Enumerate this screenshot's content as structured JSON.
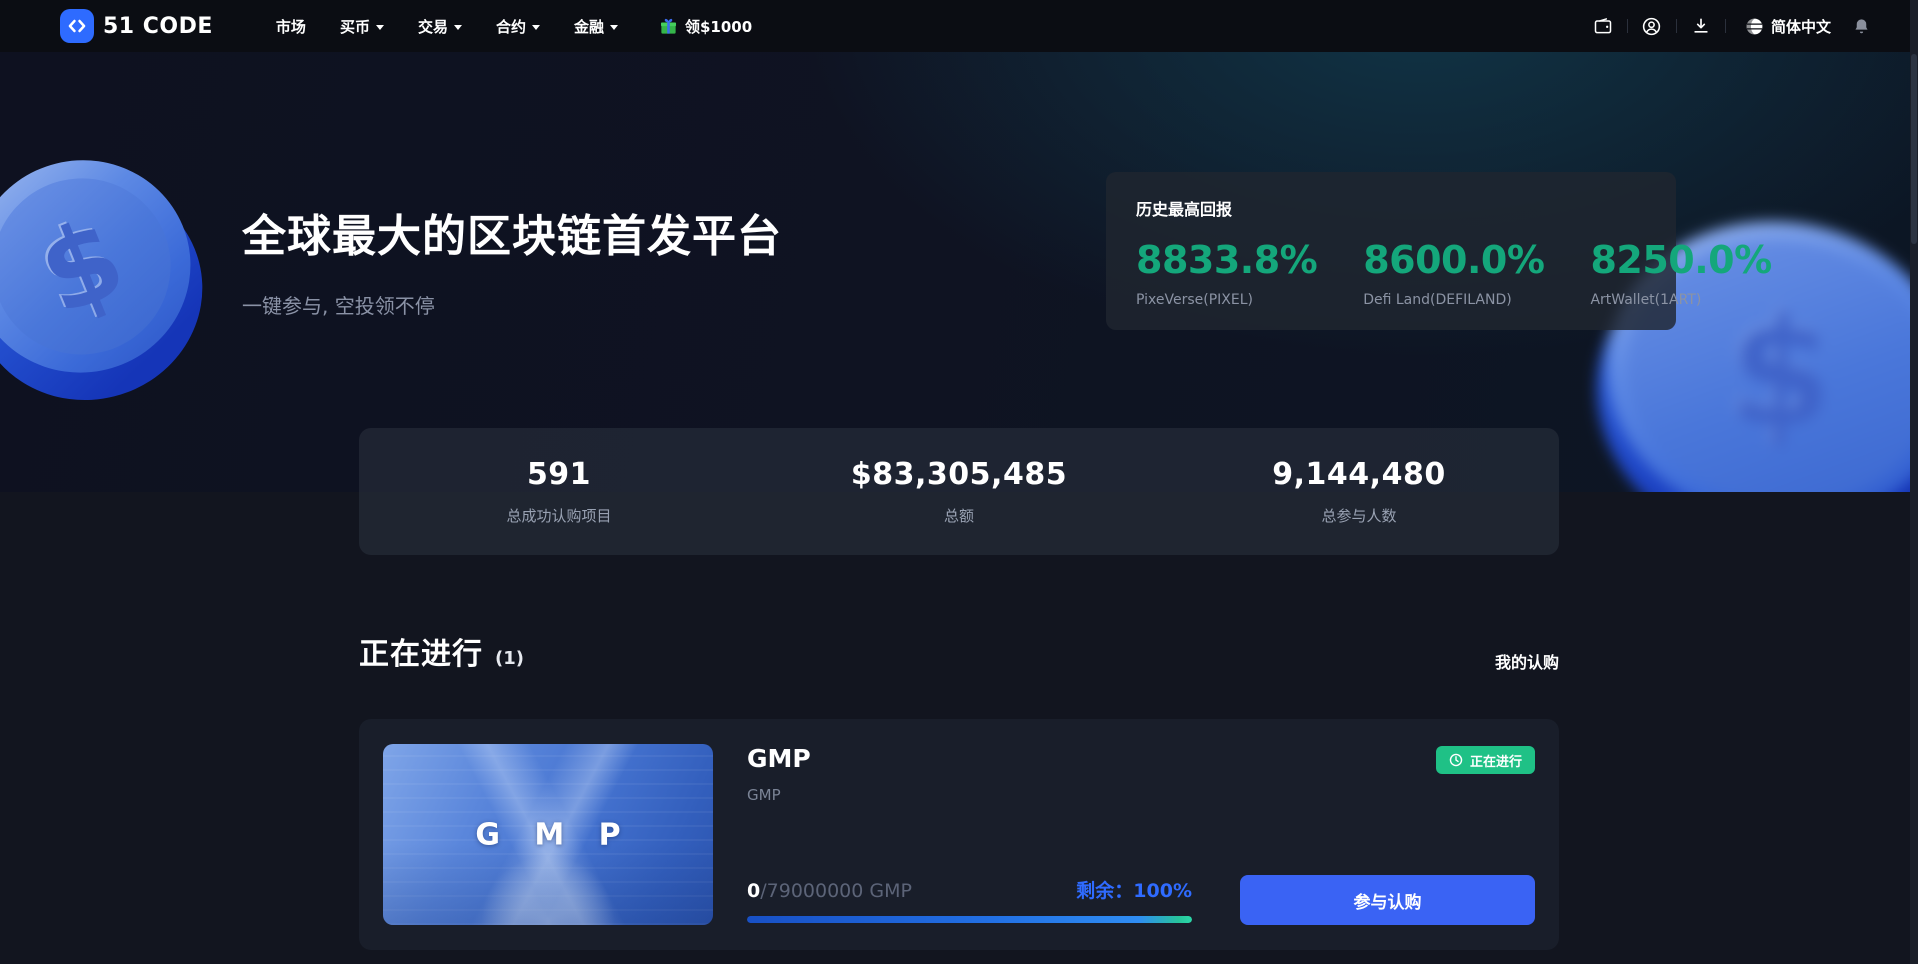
{
  "navbar": {
    "brand": "51 CODE",
    "menu": [
      {
        "label": "市场",
        "has_dropdown": false
      },
      {
        "label": "买币",
        "has_dropdown": true
      },
      {
        "label": "交易",
        "has_dropdown": true
      },
      {
        "label": "合约",
        "has_dropdown": true
      },
      {
        "label": "金融",
        "has_dropdown": true
      }
    ],
    "promo": {
      "label": "领$1000",
      "icon": "gift-icon"
    },
    "right_icons": [
      "wallet-icon",
      "account-icon",
      "download-icon",
      "globe-icon",
      "bell-icon"
    ],
    "language": "简体中文"
  },
  "hero": {
    "title": "全球最大的区块链首发平台",
    "subtitle": "一键参与, 空投领不停",
    "returns_card": {
      "title": "历史最高回报",
      "items": [
        {
          "value": "8833.8%",
          "label": "PixeVerse(PIXEL)"
        },
        {
          "value": "8600.0%",
          "label": "Defi Land(DEFILAND)"
        },
        {
          "value": "8250.0%",
          "label": "ArtWallet(1ART)"
        }
      ]
    }
  },
  "stats": {
    "items": [
      {
        "value": "591",
        "label": "总成功认购项目"
      },
      {
        "value": "$83,305,485",
        "label": "总额"
      },
      {
        "value": "9,144,480",
        "label": "总参与人数"
      }
    ]
  },
  "section": {
    "title": "正在进行",
    "count": "(1)",
    "link": "我的认购"
  },
  "project": {
    "image_text": "G M P",
    "name": "GMP",
    "subtitle": "GMP",
    "status": "正在进行",
    "status_icon": "clock-icon",
    "progress": {
      "current": "0",
      "total": "/79000000 GMP",
      "remaining_label": "剩余：",
      "remaining_value": "100%",
      "percent": 100
    },
    "action": "参与认购"
  },
  "colors": {
    "accent_blue": "#2F6BFF",
    "button_blue": "#3A63F4",
    "returns_green": "#14A77B",
    "badge_green": "#1FC186"
  }
}
